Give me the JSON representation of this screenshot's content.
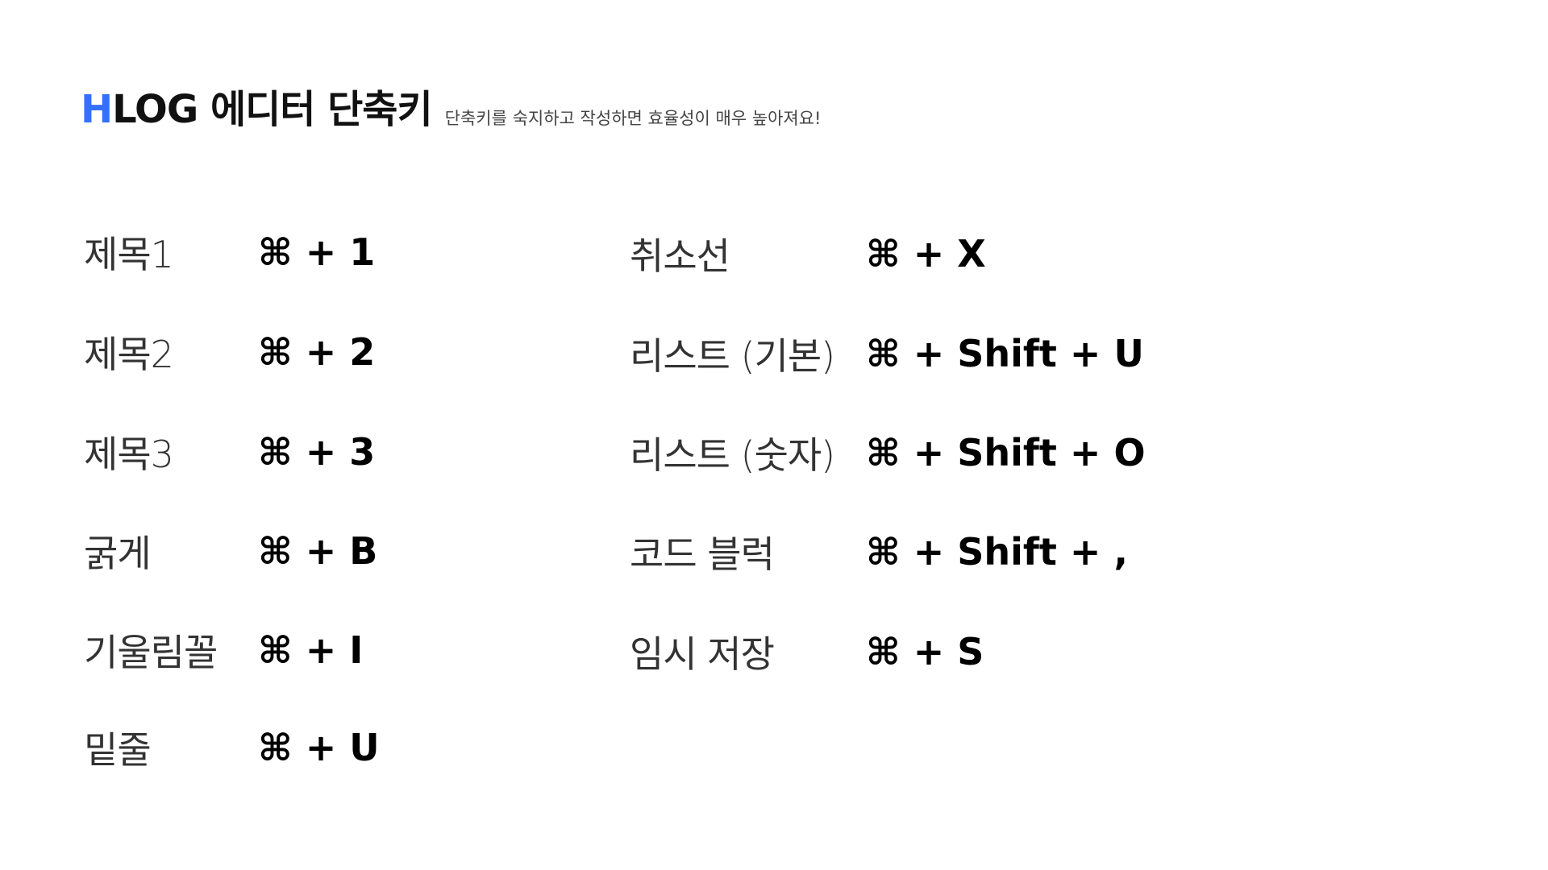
{
  "header": {
    "title_accent": "H",
    "title_rest": "LOG 에디터 단축키",
    "subtitle": "단축키를 숙지하고 작성하면 효율성이 매우 높아져요!"
  },
  "shortcuts_left": [
    {
      "label": "제목1",
      "keys": "⌘ + 1"
    },
    {
      "label": "제목2",
      "keys": "⌘ + 2"
    },
    {
      "label": "제목3",
      "keys": "⌘ + 3"
    },
    {
      "label": "굵게",
      "keys": "⌘ + B"
    },
    {
      "label": "기울림꼴",
      "keys": "⌘ + I"
    },
    {
      "label": "밑줄",
      "keys": "⌘ + U"
    }
  ],
  "shortcuts_right": [
    {
      "label": "취소선",
      "keys": "⌘ + X"
    },
    {
      "label": "리스트 (기본)",
      "keys": "⌘ + Shift + U"
    },
    {
      "label": "리스트 (숫자)",
      "keys": "⌘ + Shift + O"
    },
    {
      "label": "코드 블럭",
      "keys": "⌘ + Shift + ,"
    },
    {
      "label": "임시 저장",
      "keys": "⌘ + S"
    }
  ],
  "colors": {
    "accent": "#3370ff",
    "text": "#111111",
    "subtle": "#444444"
  }
}
